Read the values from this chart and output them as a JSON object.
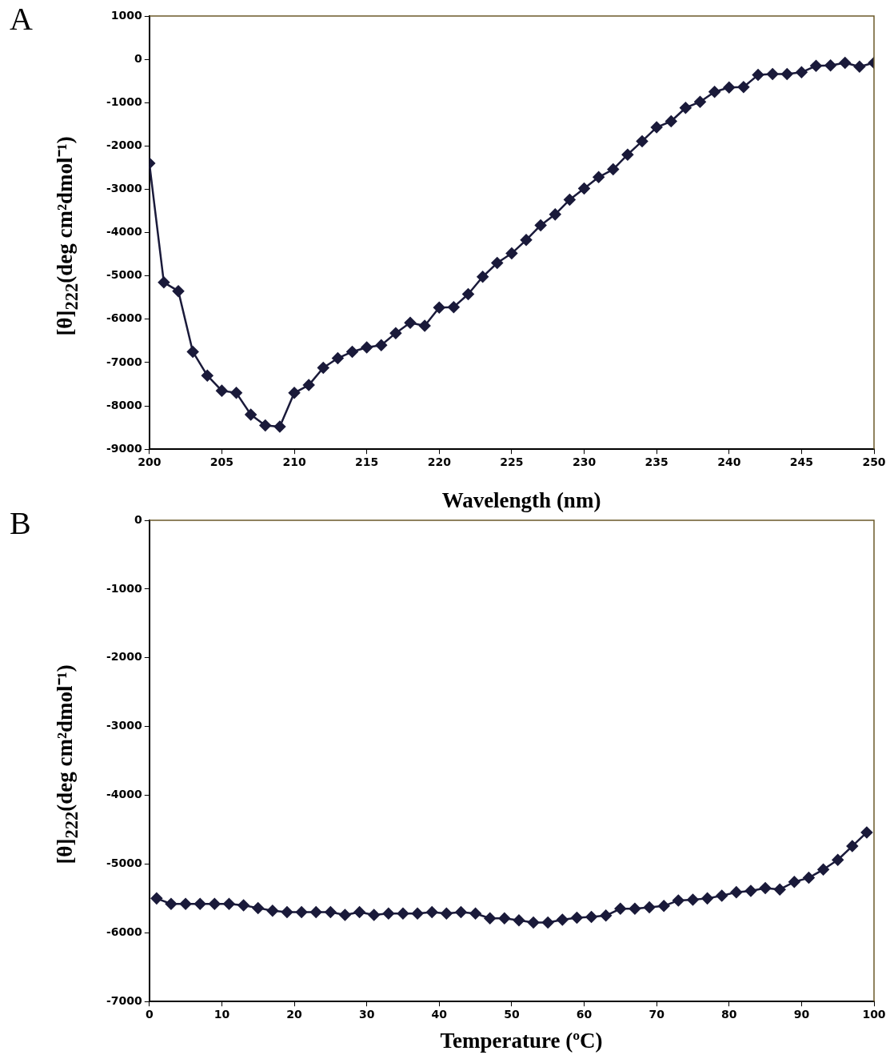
{
  "chart_data": [
    {
      "type": "line",
      "title": "A",
      "xlabel": "Wavelength (nm)",
      "ylabel": "[θ]$_{222}$(deg cm²dmol⁻¹)",
      "marker": "diamond",
      "line_style": "solid",
      "grid": false,
      "legend": false,
      "xlim": [
        200,
        250
      ],
      "xticks": [
        200,
        205,
        210,
        215,
        220,
        225,
        230,
        235,
        240,
        245,
        250
      ],
      "ylim": [
        -9000,
        1000
      ],
      "yticks": [
        -9000,
        -8000,
        -7000,
        -6000,
        -5000,
        -4000,
        -3000,
        -2000,
        -1000,
        0,
        1000
      ],
      "x": [
        200,
        201,
        202,
        203,
        204,
        205,
        206,
        207,
        208,
        209,
        210,
        211,
        212,
        213,
        214,
        215,
        216,
        217,
        218,
        219,
        220,
        221,
        222,
        223,
        224,
        225,
        226,
        227,
        228,
        229,
        230,
        231,
        232,
        233,
        234,
        235,
        236,
        237,
        238,
        239,
        240,
        241,
        242,
        243,
        244,
        245,
        246,
        247,
        248,
        249,
        250
      ],
      "series": [
        {
          "color": "#1a1a3a",
          "values": [
            -2400,
            -5150,
            -5350,
            -6750,
            -7300,
            -7650,
            -7700,
            -8200,
            -8450,
            -8480,
            -7700,
            -7520,
            -7120,
            -6900,
            -6750,
            -6650,
            -6600,
            -6320,
            -6080,
            -6150,
            -5730,
            -5720,
            -5420,
            -5020,
            -4700,
            -4480,
            -4170,
            -3830,
            -3580,
            -3240,
            -2980,
            -2720,
            -2540,
            -2200,
            -1890,
            -1570,
            -1430,
            -1120,
            -980,
            -750,
            -650,
            -640,
            -360,
            -340,
            -340,
            -300,
            -150,
            -140,
            -80,
            -170,
            -80
          ]
        }
      ]
    },
    {
      "type": "line",
      "title": "B",
      "xlabel": "Temperature (ºC)",
      "ylabel": "[θ]$_{222}$(deg cm²dmol⁻¹)",
      "marker": "diamond",
      "line_style": "solid",
      "grid": false,
      "legend": false,
      "xlim": [
        0,
        100
      ],
      "xticks": [
        0,
        10,
        20,
        30,
        40,
        50,
        60,
        70,
        80,
        90,
        100
      ],
      "ylim": [
        -7000,
        0
      ],
      "yticks": [
        -7000,
        -6000,
        -5000,
        -4000,
        -3000,
        -2000,
        -1000,
        0
      ],
      "x": [
        1,
        3,
        5,
        7,
        9,
        11,
        13,
        15,
        17,
        19,
        21,
        23,
        25,
        27,
        29,
        31,
        33,
        35,
        37,
        39,
        41,
        43,
        45,
        47,
        49,
        51,
        53,
        55,
        57,
        59,
        61,
        63,
        65,
        67,
        69,
        71,
        73,
        75,
        77,
        79,
        81,
        83,
        85,
        87,
        89,
        91,
        93,
        95,
        97,
        99
      ],
      "series": [
        {
          "color": "#1a1a3a",
          "values": [
            -5500,
            -5580,
            -5580,
            -5580,
            -5580,
            -5580,
            -5600,
            -5640,
            -5680,
            -5700,
            -5700,
            -5700,
            -5700,
            -5740,
            -5700,
            -5740,
            -5720,
            -5720,
            -5720,
            -5700,
            -5720,
            -5700,
            -5720,
            -5790,
            -5790,
            -5820,
            -5850,
            -5850,
            -5810,
            -5780,
            -5770,
            -5750,
            -5650,
            -5650,
            -5630,
            -5610,
            -5530,
            -5520,
            -5500,
            -5460,
            -5410,
            -5390,
            -5350,
            -5370,
            -5260,
            -5200,
            -5080,
            -4940,
            -4740,
            -4540
          ]
        }
      ]
    }
  ]
}
